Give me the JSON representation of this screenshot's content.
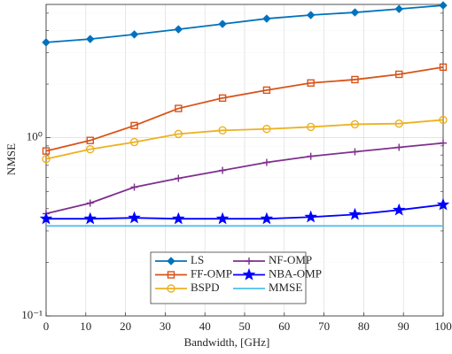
{
  "chart_data": {
    "type": "line",
    "xlabel": "Bandwidth, [GHz]",
    "ylabel": "NMSE",
    "x": [
      0,
      11.11,
      22.22,
      33.33,
      44.44,
      55.56,
      66.67,
      77.78,
      88.89,
      100
    ],
    "series": [
      {
        "name": "LS",
        "color": "#0072BD",
        "marker": "diamond",
        "values": [
          3.43,
          3.58,
          3.8,
          4.06,
          4.35,
          4.66,
          4.88,
          5.05,
          5.28,
          5.53
        ]
      },
      {
        "name": "FF-OMP",
        "color": "#D95319",
        "marker": "square",
        "values": [
          0.843,
          0.966,
          1.17,
          1.46,
          1.67,
          1.85,
          2.03,
          2.12,
          2.27,
          2.49
        ]
      },
      {
        "name": "BSPD",
        "color": "#EDB120",
        "marker": "circle",
        "values": [
          0.76,
          0.862,
          0.945,
          1.05,
          1.1,
          1.12,
          1.15,
          1.19,
          1.2,
          1.26
        ]
      },
      {
        "name": "NF-OMP",
        "color": "#7E2F8E",
        "marker": "plus",
        "values": [
          0.375,
          0.43,
          0.528,
          0.592,
          0.656,
          0.727,
          0.787,
          0.834,
          0.883,
          0.934
        ]
      },
      {
        "name": "NBA-OMP",
        "color": "#0000FF",
        "marker": "star",
        "values": [
          0.351,
          0.351,
          0.355,
          0.351,
          0.351,
          0.351,
          0.359,
          0.371,
          0.393,
          0.421
        ]
      },
      {
        "name": "MMSE",
        "color": "#4DBEEE",
        "marker": "none",
        "values": [
          0.32,
          0.32,
          0.32,
          0.32,
          0.32,
          0.32,
          0.32,
          0.32,
          0.32,
          0.32
        ]
      }
    ],
    "xlim": [
      0,
      100
    ],
    "xticks": [
      0,
      10,
      20,
      30,
      40,
      50,
      60,
      70,
      80,
      90,
      100
    ],
    "ylim": [
      0.1,
      5.6
    ],
    "yticks": [
      {
        "value": 0.1,
        "label": "10⁻¹"
      },
      {
        "value": 1,
        "label": "10⁰"
      }
    ],
    "ylog": true,
    "grid": true
  }
}
